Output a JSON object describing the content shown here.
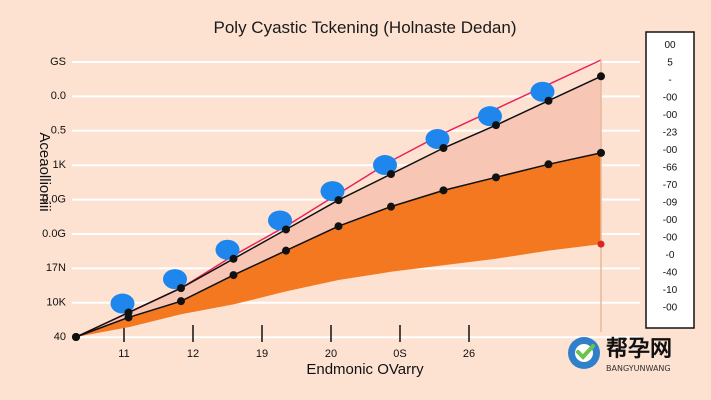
{
  "chart_data": {
    "type": "area",
    "title": "Poly Cyastic Tckening (Holnaste Dedan)",
    "xlabel": "Endmonic OVarry",
    "ylabel": "Aceaollioniii",
    "y_tick_labels": [
      "40",
      "10K",
      "17N",
      "0.0G",
      "0.0G",
      "1K",
      "0.5",
      "0.0",
      "GS"
    ],
    "x_tick_labels": [
      "11",
      "12",
      "19",
      "20",
      "0S",
      "26"
    ],
    "x": [
      0,
      1,
      2,
      3,
      4,
      5,
      6,
      7,
      8,
      9,
      10
    ],
    "series": [
      {
        "values": [
          40,
          55,
          70,
          90,
          108,
          128,
          148,
          165,
          180,
          195,
          210
        ],
        "color": "#e8245a"
      },
      {
        "values": [
          40,
          55,
          70,
          88,
          106,
          124,
          140,
          156,
          170,
          185,
          200
        ],
        "color": "#111111"
      },
      {
        "values": [
          40,
          52,
          62,
          78,
          93,
          108,
          120,
          130,
          138,
          146,
          153
        ],
        "color": "#111111"
      },
      {
        "values": [
          40,
          46,
          54,
          60,
          68,
          75,
          80,
          84,
          88,
          93,
          97
        ],
        "color": "#f36f1c"
      }
    ],
    "colors": {
      "background": "#fde2d2",
      "fill_upper": "#f8c6b4",
      "fill_lower": "#f4781f",
      "bubble": "#1e86ec",
      "pink_line": "#e8245a",
      "grid": "#ffffff"
    }
  },
  "legend": {
    "items": [
      "00",
      "5",
      "-",
      "-00",
      "-00",
      "-23",
      "-00",
      "-66",
      "-70",
      "-09",
      "-00",
      "-00",
      "-0",
      "-40",
      "-10",
      "-00"
    ]
  },
  "watermark": {
    "cn": "帮孕网",
    "en": "BANGYUNWANG"
  }
}
